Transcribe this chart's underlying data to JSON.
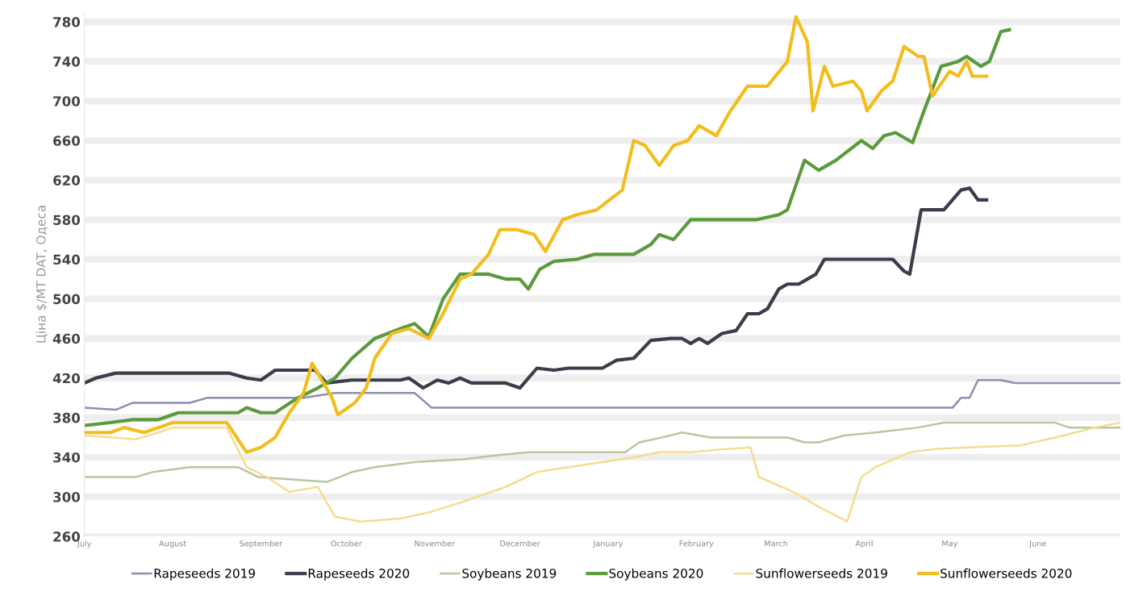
{
  "chart_data": {
    "type": "line",
    "ylabel": "Ціна $/MT DAT, Одеса",
    "ylim": [
      260,
      790
    ],
    "yticks": [
      260,
      300,
      340,
      380,
      420,
      460,
      500,
      540,
      580,
      620,
      660,
      700,
      740,
      780
    ],
    "xlim": [
      "2020-07-01",
      "2021-06-30"
    ],
    "xticks": [
      {
        "value": "2020-07-01",
        "label": "July"
      },
      {
        "value": "2020-08-01",
        "label": "August"
      },
      {
        "value": "2020-09-01",
        "label": "September"
      },
      {
        "value": "2020-10-01",
        "label": "October"
      },
      {
        "value": "2020-11-01",
        "label": "November"
      },
      {
        "value": "2020-12-01",
        "label": "December"
      },
      {
        "value": "2021-01-01",
        "label": "January"
      },
      {
        "value": "2021-02-01",
        "label": "February"
      },
      {
        "value": "2021-03-01",
        "label": "March"
      },
      {
        "value": "2021-04-01",
        "label": "April"
      },
      {
        "value": "2021-05-01",
        "label": "May"
      },
      {
        "value": "2021-06-01",
        "label": "June"
      }
    ],
    "grid": "y",
    "legend": "bottom",
    "marker": "none",
    "line_style": "solid",
    "series": [
      {
        "name": "Rapeseeds 2019",
        "color": "#8a8fb0",
        "x": [
          "2020-07-01",
          "2020-07-12",
          "2020-07-18",
          "2020-08-07",
          "2020-08-13",
          "2020-09-16",
          "2020-09-27",
          "2020-10-25",
          "2020-10-31",
          "2021-05-02",
          "2021-05-05",
          "2021-05-08",
          "2021-05-11",
          "2021-05-19",
          "2021-05-24",
          "2021-06-30"
        ],
        "values": [
          390,
          388,
          395,
          395,
          400,
          400,
          405,
          405,
          390,
          390,
          400,
          400,
          418,
          418,
          415,
          415
        ]
      },
      {
        "name": "Rapeseeds 2020",
        "color": "#3a3d4a",
        "x": [
          "2020-07-01",
          "2020-07-05",
          "2020-07-12",
          "2020-08-21",
          "2020-08-27",
          "2020-09-01",
          "2020-09-06",
          "2020-09-20",
          "2020-09-24",
          "2020-10-03",
          "2020-10-20",
          "2020-10-23",
          "2020-10-28",
          "2020-11-02",
          "2020-11-06",
          "2020-11-10",
          "2020-11-14",
          "2020-11-26",
          "2020-12-01",
          "2020-12-07",
          "2020-12-13",
          "2020-12-18",
          "2020-12-30",
          "2021-01-04",
          "2021-01-10",
          "2021-01-16",
          "2021-01-23",
          "2021-01-27",
          "2021-01-30",
          "2021-02-02",
          "2021-02-05",
          "2021-02-10",
          "2021-02-15",
          "2021-02-19",
          "2021-02-23",
          "2021-02-26",
          "2021-03-02",
          "2021-03-05",
          "2021-03-09",
          "2021-03-12",
          "2021-03-15",
          "2021-03-18",
          "2021-04-02",
          "2021-04-11",
          "2021-04-15",
          "2021-04-17",
          "2021-04-21",
          "2021-04-25",
          "2021-04-29",
          "2021-05-05",
          "2021-05-08",
          "2021-05-11",
          "2021-05-14"
        ],
        "values": [
          415,
          420,
          425,
          425,
          420,
          418,
          428,
          428,
          415,
          418,
          418,
          420,
          410,
          418,
          415,
          420,
          415,
          415,
          410,
          430,
          428,
          430,
          430,
          438,
          440,
          458,
          460,
          460,
          455,
          460,
          455,
          465,
          468,
          485,
          485,
          490,
          510,
          515,
          515,
          520,
          525,
          540,
          540,
          540,
          528,
          525,
          590,
          590,
          590,
          610,
          612,
          600,
          600
        ]
      },
      {
        "name": "Soybeans 2019",
        "color": "#b6c7a0",
        "x": [
          "2020-07-01",
          "2020-07-19",
          "2020-07-25",
          "2020-08-07",
          "2020-08-24",
          "2020-08-31",
          "2020-09-10",
          "2020-09-24",
          "2020-09-27",
          "2020-10-03",
          "2020-10-11",
          "2020-10-25",
          "2020-11-11",
          "2020-11-23",
          "2020-12-04",
          "2021-01-07",
          "2021-01-12",
          "2021-01-20",
          "2021-01-27",
          "2021-02-06",
          "2021-03-05",
          "2021-03-11",
          "2021-03-16",
          "2021-03-25",
          "2021-04-05",
          "2021-04-20",
          "2021-04-29",
          "2021-06-07",
          "2021-06-12",
          "2021-06-30"
        ],
        "values": [
          320,
          320,
          325,
          330,
          330,
          320,
          318,
          315,
          318,
          325,
          330,
          335,
          338,
          342,
          345,
          345,
          355,
          360,
          365,
          360,
          360,
          355,
          355,
          362,
          365,
          370,
          375,
          375,
          370,
          370
        ]
      },
      {
        "name": "Soybeans 2020",
        "color": "#5a9a3c",
        "x": [
          "2020-07-01",
          "2020-07-10",
          "2020-07-18",
          "2020-07-27",
          "2020-08-03",
          "2020-08-24",
          "2020-08-27",
          "2020-09-01",
          "2020-09-06",
          "2020-09-14",
          "2020-09-21",
          "2020-09-27",
          "2020-10-03",
          "2020-10-11",
          "2020-10-20",
          "2020-10-25",
          "2020-10-30",
          "2020-11-04",
          "2020-11-10",
          "2020-11-20",
          "2020-11-26",
          "2020-12-01",
          "2020-12-04",
          "2020-12-08",
          "2020-12-13",
          "2020-12-21",
          "2020-12-27",
          "2021-01-10",
          "2021-01-16",
          "2021-01-19",
          "2021-01-24",
          "2021-01-30",
          "2021-02-22",
          "2021-03-02",
          "2021-03-05",
          "2021-03-11",
          "2021-03-16",
          "2021-03-22",
          "2021-03-31",
          "2021-04-04",
          "2021-04-08",
          "2021-04-12",
          "2021-04-18",
          "2021-04-22",
          "2021-04-28",
          "2021-05-04",
          "2021-05-07",
          "2021-05-12",
          "2021-05-15",
          "2021-05-19",
          "2021-05-22"
        ],
        "values": [
          372,
          375,
          378,
          378,
          385,
          385,
          390,
          385,
          385,
          400,
          410,
          420,
          440,
          460,
          470,
          475,
          462,
          500,
          525,
          525,
          520,
          520,
          510,
          530,
          538,
          540,
          545,
          545,
          555,
          565,
          560,
          580,
          580,
          585,
          590,
          640,
          630,
          640,
          660,
          652,
          665,
          668,
          658,
          690,
          735,
          740,
          745,
          735,
          740,
          770,
          772
        ]
      },
      {
        "name": "Sunflowerseeds 2019",
        "color": "#f5dc8f",
        "x": [
          "2020-07-01",
          "2020-07-19",
          "2020-07-27",
          "2020-08-01",
          "2020-08-20",
          "2020-08-27",
          "2020-09-03",
          "2020-09-11",
          "2020-09-21",
          "2020-09-27",
          "2020-10-06",
          "2020-10-20",
          "2020-10-31",
          "2020-11-11",
          "2020-11-26",
          "2020-12-07",
          "2020-12-18",
          "2020-12-30",
          "2021-01-10",
          "2021-01-19",
          "2021-01-30",
          "2021-02-10",
          "2021-02-20",
          "2021-02-23",
          "2021-03-07",
          "2021-03-16",
          "2021-03-26",
          "2021-03-31",
          "2021-04-05",
          "2021-04-17",
          "2021-04-25",
          "2021-05-07",
          "2021-05-26",
          "2021-06-10",
          "2021-06-21",
          "2021-06-30"
        ],
        "values": [
          362,
          358,
          365,
          370,
          370,
          330,
          320,
          305,
          310,
          280,
          275,
          278,
          285,
          295,
          310,
          325,
          330,
          335,
          340,
          345,
          345,
          348,
          350,
          320,
          305,
          290,
          275,
          320,
          330,
          345,
          348,
          350,
          352,
          362,
          370,
          375
        ]
      },
      {
        "name": "Sunflowerseeds 2020",
        "color": "#f2bd1d",
        "x": [
          "2020-07-01",
          "2020-07-10",
          "2020-07-15",
          "2020-07-22",
          "2020-08-01",
          "2020-08-20",
          "2020-08-27",
          "2020-09-01",
          "2020-09-06",
          "2020-09-11",
          "2020-09-16",
          "2020-09-19",
          "2020-09-21",
          "2020-09-26",
          "2020-09-28",
          "2020-10-04",
          "2020-10-08",
          "2020-10-11",
          "2020-10-17",
          "2020-10-23",
          "2020-10-30",
          "2020-11-04",
          "2020-11-10",
          "2020-11-14",
          "2020-11-20",
          "2020-11-24",
          "2020-11-30",
          "2020-12-06",
          "2020-12-10",
          "2020-12-16",
          "2020-12-21",
          "2020-12-28",
          "2021-01-06",
          "2021-01-10",
          "2021-01-14",
          "2021-01-19",
          "2021-01-24",
          "2021-01-29",
          "2021-02-02",
          "2021-02-08",
          "2021-02-13",
          "2021-02-19",
          "2021-02-26",
          "2021-03-05",
          "2021-03-08",
          "2021-03-12",
          "2021-03-14",
          "2021-03-18",
          "2021-03-21",
          "2021-03-28",
          "2021-03-31",
          "2021-04-02",
          "2021-04-07",
          "2021-04-11",
          "2021-04-15",
          "2021-04-20",
          "2021-04-22",
          "2021-04-25",
          "2021-05-01",
          "2021-05-04",
          "2021-05-07",
          "2021-05-09",
          "2021-05-14"
        ],
        "values": [
          365,
          365,
          370,
          365,
          375,
          375,
          345,
          350,
          360,
          385,
          405,
          435,
          425,
          400,
          383,
          395,
          410,
          440,
          465,
          470,
          460,
          485,
          520,
          525,
          545,
          570,
          570,
          565,
          548,
          580,
          585,
          590,
          610,
          660,
          655,
          635,
          655,
          660,
          675,
          665,
          690,
          715,
          715,
          740,
          785,
          760,
          690,
          735,
          715,
          720,
          710,
          690,
          710,
          720,
          755,
          745,
          745,
          705,
          730,
          725,
          740,
          725,
          725
        ]
      }
    ]
  }
}
